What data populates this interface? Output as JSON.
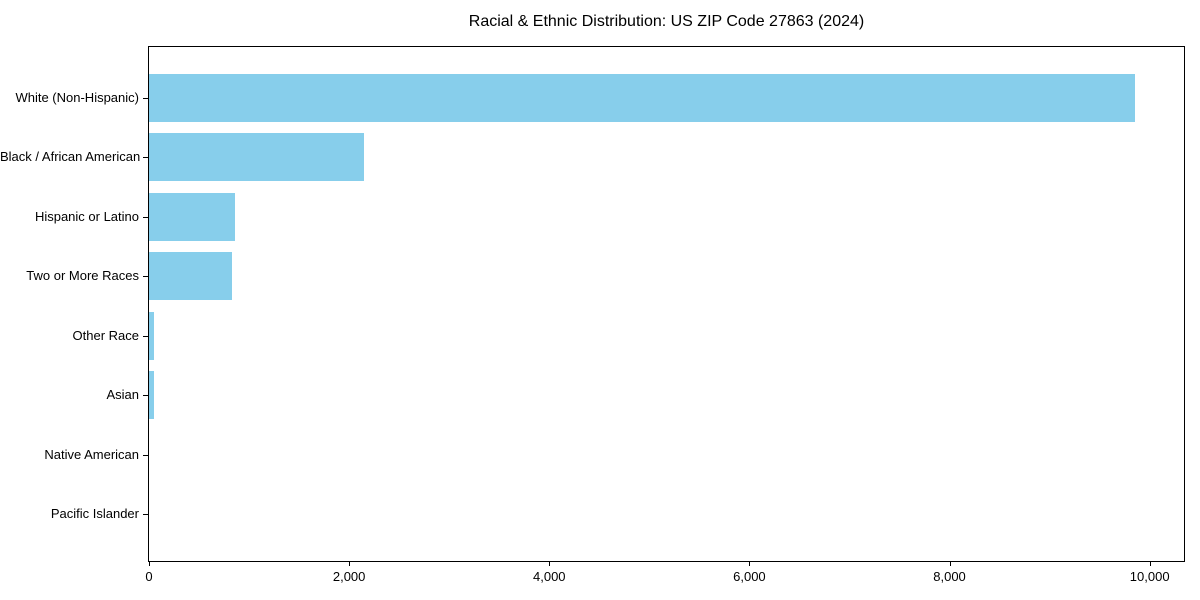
{
  "chart_data": {
    "type": "bar",
    "orientation": "horizontal",
    "title": "Racial & Ethnic Distribution: US ZIP Code 27863 (2024)",
    "xlabel": "",
    "ylabel": "",
    "categories": [
      "White (Non-Hispanic)",
      "Black / African American",
      "Hispanic or Latino",
      "Two or More Races",
      "Other Race",
      "Asian",
      "Native American",
      "Pacific Islander"
    ],
    "values": [
      9850,
      2145,
      855,
      825,
      50,
      45,
      0,
      0
    ],
    "xlim": [
      0,
      10343
    ],
    "xticks": [
      0,
      2000,
      4000,
      6000,
      8000,
      10000
    ],
    "xtick_labels": [
      "0",
      "2,000",
      "4,000",
      "6,000",
      "8,000",
      "10,000"
    ],
    "grid": false,
    "legend": "none",
    "bar_color": "#87CEEB",
    "axis_color": "#000000",
    "text_color": "#000000",
    "background_color": "#ffffff"
  }
}
